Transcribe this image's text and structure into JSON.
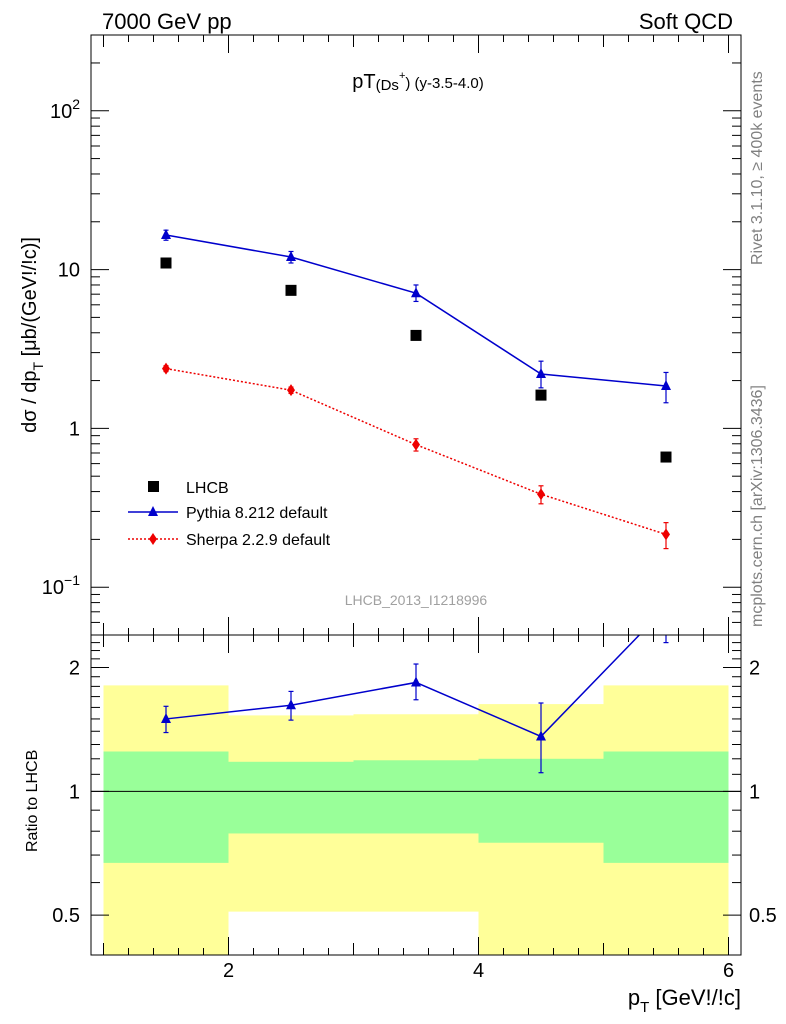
{
  "header": {
    "left": "7000 GeV pp",
    "right": "Soft QCD"
  },
  "plot_title": {
    "main": "pT",
    "sub": "(Ds",
    "sup": "+",
    "close": ")",
    "rest": " (y-3.5-4.0)"
  },
  "side_labels": {
    "rivet": "Rivet 3.1.10, ≥ 400k events",
    "mcplots": "mcplots.cern.ch [arXiv:1306.3436]"
  },
  "reference_id": "LHCB_2013_I1218996",
  "upper_ylabel": {
    "main": "dσ / dp",
    "sub": "T",
    "unit": " [μb/(GeV!/!c)]"
  },
  "lower_ylabel": "Ratio to LHCB",
  "xlabel": {
    "main": "p",
    "sub": "T",
    "unit": " [GeV!/!c]"
  },
  "legend": [
    {
      "label": "LHCB"
    },
    {
      "label": "Pythia 8.212 default"
    },
    {
      "label": "Sherpa 2.2.9 default"
    }
  ],
  "colors": {
    "data": "#000000",
    "pythia": "#0000cc",
    "sherpa": "#ee0000",
    "band_inner": "#99ff99",
    "band_outer": "#ffff99"
  },
  "chart_data": [
    {
      "type": "scatter",
      "panel": "main",
      "yscale": "log",
      "xlim": [
        0.9,
        6.1
      ],
      "ylim": [
        0.05,
        300
      ],
      "y_tick_labels": [
        "10^-1",
        "1",
        "10",
        "10^2"
      ],
      "series": [
        {
          "name": "LHCB",
          "style": "square-marker",
          "x": [
            1.5,
            2.5,
            3.5,
            4.5,
            5.5
          ],
          "y": [
            11.0,
            7.4,
            3.85,
            1.62,
            0.66
          ]
        },
        {
          "name": "Pythia 8.212 default",
          "style": "solid-line-triangle",
          "x": [
            1.5,
            2.5,
            3.5,
            4.5,
            5.5
          ],
          "y": [
            16.5,
            12.0,
            7.1,
            2.2,
            1.85
          ],
          "err_up": [
            1.2,
            1.0,
            0.9,
            0.45,
            0.4
          ],
          "err_down": [
            1.2,
            1.0,
            0.8,
            0.4,
            0.4
          ]
        },
        {
          "name": "Sherpa 2.2.9 default",
          "style": "dotted-line-diamond",
          "x": [
            1.5,
            2.5,
            3.5,
            4.5,
            5.5
          ],
          "y": [
            2.38,
            1.74,
            0.79,
            0.385,
            0.215
          ],
          "err_up": [
            0.1,
            0.08,
            0.07,
            0.05,
            0.04
          ],
          "err_down": [
            0.1,
            0.08,
            0.07,
            0.05,
            0.04
          ]
        }
      ]
    },
    {
      "type": "line",
      "panel": "ratio",
      "yscale": "log",
      "xlim": [
        0.9,
        6.1
      ],
      "ylim": [
        0.4,
        2.4
      ],
      "x_tick_labels": [
        "2",
        "4",
        "6"
      ],
      "y_tick_labels": [
        "0.5",
        "1",
        "2"
      ],
      "reference_line": 1,
      "bands": {
        "x_edges": [
          1,
          2,
          3,
          4,
          5,
          6
        ],
        "inner_low": [
          0.67,
          0.79,
          0.79,
          0.75,
          0.67
        ],
        "inner_high": [
          1.25,
          1.18,
          1.19,
          1.2,
          1.25
        ],
        "outer_low": [
          0.35,
          0.51,
          0.51,
          0.37,
          0.35
        ],
        "outer_high": [
          1.81,
          1.53,
          1.54,
          1.63,
          1.81
        ]
      },
      "series": [
        {
          "name": "Pythia 8.212 default",
          "x": [
            1.5,
            2.5,
            3.5,
            4.5,
            5.5
          ],
          "y": [
            1.5,
            1.62,
            1.84,
            1.36,
            2.8
          ],
          "err_up": [
            0.11,
            0.13,
            0.2,
            0.28,
            0.5
          ],
          "err_down": [
            0.11,
            0.13,
            0.17,
            0.25,
            0.5
          ]
        }
      ]
    }
  ]
}
